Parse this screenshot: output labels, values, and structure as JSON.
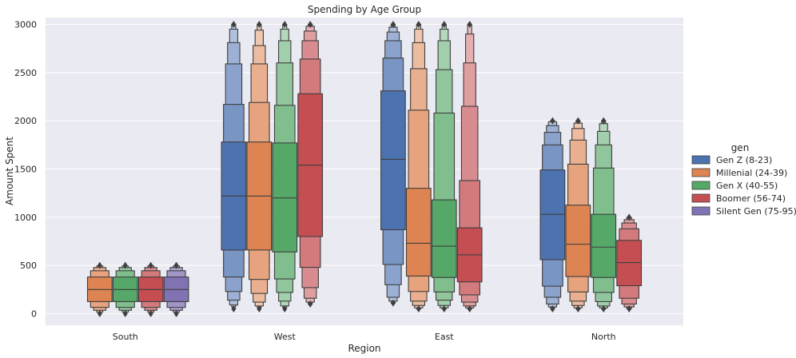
{
  "chart_data": {
    "type": "boxen",
    "title": "Spending by Age Group",
    "xlabel": "Region",
    "ylabel": "Amount Spent",
    "categories": [
      "South",
      "West",
      "East",
      "North"
    ],
    "ylim": [
      -120,
      3070
    ],
    "yticks": [
      0,
      500,
      1000,
      1500,
      2000,
      2500,
      3000
    ],
    "grid": true,
    "legend": {
      "title": "gen",
      "placement": "right"
    },
    "series": [
      {
        "name": "Gen Z (8-23)",
        "color": "#4c72b0",
        "boxes": [
          null,
          {
            "median": 1220,
            "levels": [
              [
                660,
                1780
              ],
              [
                380,
                2170
              ],
              [
                230,
                2590
              ],
              [
                140,
                2810
              ],
              [
                90,
                2950
              ],
              [
                70,
                3000
              ]
            ],
            "outliers": [
              50,
              3000
            ]
          },
          {
            "median": 1600,
            "levels": [
              [
                870,
                2310
              ],
              [
                510,
                2650
              ],
              [
                300,
                2830
              ],
              [
                170,
                2920
              ],
              [
                130,
                2970
              ],
              [
                110,
                3000
              ]
            ],
            "outliers": [
              110,
              3000
            ]
          },
          {
            "median": 1030,
            "levels": [
              [
                560,
                1490
              ],
              [
                285,
                1750
              ],
              [
                170,
                1880
              ],
              [
                100,
                1950
              ],
              [
                70,
                1990
              ],
              [
                55,
                2000
              ]
            ],
            "outliers": [
              50,
              2000
            ]
          }
        ]
      },
      {
        "name": "Millenial (24-39)",
        "color": "#dd8452",
        "boxes": [
          {
            "median": 250,
            "levels": [
              [
                125,
                380
              ],
              [
                65,
                445
              ],
              [
                35,
                478
              ],
              [
                15,
                495
              ]
            ],
            "outliers": [
              0,
              500
            ]
          },
          {
            "median": 1220,
            "levels": [
              [
                660,
                1780
              ],
              [
                355,
                2190
              ],
              [
                210,
                2590
              ],
              [
                120,
                2780
              ],
              [
                80,
                2940
              ],
              [
                65,
                3000
              ]
            ],
            "outliers": [
              50,
              3000
            ]
          },
          {
            "median": 730,
            "levels": [
              [
                390,
                1300
              ],
              [
                230,
                2110
              ],
              [
                130,
                2540
              ],
              [
                85,
                2810
              ],
              [
                60,
                2950
              ],
              [
                50,
                3000
              ]
            ],
            "outliers": [
              50,
              3000
            ]
          },
          {
            "median": 720,
            "levels": [
              [
                385,
                1125
              ],
              [
                225,
                1550
              ],
              [
                130,
                1800
              ],
              [
                85,
                1920
              ],
              [
                60,
                1975
              ],
              [
                50,
                2000
              ]
            ],
            "outliers": [
              50,
              2000
            ]
          }
        ]
      },
      {
        "name": "Gen X (40-55)",
        "color": "#55a868",
        "boxes": [
          {
            "median": 250,
            "levels": [
              [
                125,
                380
              ],
              [
                65,
                445
              ],
              [
                35,
                478
              ],
              [
                15,
                495
              ]
            ],
            "outliers": [
              0,
              500
            ]
          },
          {
            "median": 1200,
            "levels": [
              [
                640,
                1770
              ],
              [
                360,
                2160
              ],
              [
                220,
                2600
              ],
              [
                130,
                2830
              ],
              [
                80,
                2950
              ],
              [
                65,
                3000
              ]
            ],
            "outliers": [
              50,
              3000
            ]
          },
          {
            "median": 700,
            "levels": [
              [
                375,
                1180
              ],
              [
                225,
                2080
              ],
              [
                140,
                2530
              ],
              [
                85,
                2830
              ],
              [
                60,
                2950
              ],
              [
                50,
                3000
              ]
            ],
            "outliers": [
              50,
              3000
            ]
          },
          {
            "median": 690,
            "levels": [
              [
                375,
                1030
              ],
              [
                220,
                1510
              ],
              [
                125,
                1750
              ],
              [
                80,
                1890
              ],
              [
                60,
                1970
              ],
              [
                50,
                2000
              ]
            ],
            "outliers": [
              50,
              2000
            ]
          }
        ]
      },
      {
        "name": "Boomer (56-74)",
        "color": "#c44e52",
        "boxes": [
          {
            "median": 250,
            "levels": [
              [
                125,
                380
              ],
              [
                65,
                445
              ],
              [
                35,
                478
              ],
              [
                15,
                495
              ]
            ],
            "outliers": [
              0,
              500
            ]
          },
          {
            "median": 1540,
            "levels": [
              [
                800,
                2280
              ],
              [
                480,
                2640
              ],
              [
                270,
                2830
              ],
              [
                160,
                2930
              ],
              [
                120,
                2980
              ],
              [
                100,
                3000
              ]
            ],
            "outliers": [
              100,
              3000
            ]
          },
          {
            "median": 610,
            "levels": [
              [
                330,
                890
              ],
              [
                195,
                1380
              ],
              [
                120,
                2150
              ],
              [
                80,
                2600
              ],
              [
                60,
                2900
              ],
              [
                50,
                3000
              ]
            ],
            "outliers": [
              50,
              3000
            ]
          },
          {
            "median": 530,
            "levels": [
              [
                290,
                760
              ],
              [
                160,
                880
              ],
              [
                100,
                940
              ],
              [
                70,
                975
              ],
              [
                55,
                995
              ]
            ],
            "outliers": [
              50,
              1000
            ]
          }
        ]
      },
      {
        "name": "Silent Gen (75-95)",
        "color": "#8172b3",
        "boxes": [
          {
            "median": 250,
            "levels": [
              [
                125,
                380
              ],
              [
                65,
                445
              ],
              [
                35,
                478
              ],
              [
                15,
                495
              ]
            ],
            "outliers": [
              0,
              500
            ]
          },
          null,
          null,
          null
        ]
      }
    ]
  }
}
